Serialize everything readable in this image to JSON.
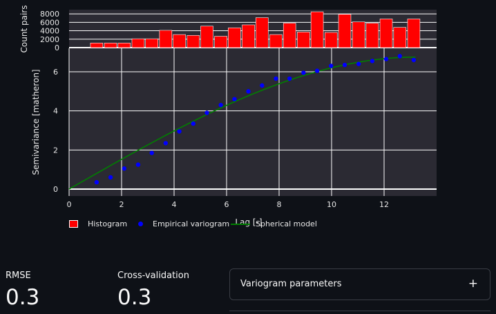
{
  "chart_data": {
    "type": "combined",
    "histogram": {
      "ylabel": "Count pairs",
      "yticks": [
        0,
        2000,
        4000,
        6000,
        8000
      ],
      "ylim": [
        0,
        9000
      ],
      "bin_centers": [
        1.05,
        1.58,
        2.1,
        2.63,
        3.15,
        3.68,
        4.2,
        4.73,
        5.25,
        5.78,
        6.3,
        6.83,
        7.35,
        7.88,
        8.4,
        8.93,
        9.45,
        9.98,
        10.5,
        11.03,
        11.55,
        12.08,
        12.6,
        13.13
      ],
      "counts": [
        1100,
        1100,
        1100,
        2100,
        2100,
        4100,
        3100,
        2900,
        5100,
        2700,
        4700,
        5400,
        7100,
        3100,
        5800,
        3700,
        8500,
        3600,
        7900,
        6100,
        5800,
        6800,
        4800,
        6800
      ]
    },
    "variogram": {
      "xlabel": "Lag [-]",
      "ylabel": "Semivariance [matheron]",
      "xlim": [
        0,
        14
      ],
      "ylim": [
        0,
        7.2
      ],
      "xticks": [
        0,
        2,
        4,
        6,
        8,
        10,
        12
      ],
      "yticks": [
        0,
        2,
        4,
        6
      ],
      "empirical": {
        "x": [
          1.05,
          1.58,
          2.1,
          2.63,
          3.15,
          3.68,
          4.2,
          4.73,
          5.25,
          5.78,
          6.3,
          6.83,
          7.35,
          7.88,
          8.4,
          8.93,
          9.45,
          9.98,
          10.5,
          11.03,
          11.55,
          12.08,
          12.6,
          13.13
        ],
        "y": [
          0.35,
          0.6,
          1.05,
          1.25,
          1.85,
          2.35,
          2.95,
          3.35,
          3.9,
          4.3,
          4.6,
          5.0,
          5.3,
          5.65,
          5.65,
          5.95,
          6.05,
          6.3,
          6.35,
          6.4,
          6.55,
          6.65,
          6.8,
          6.6
        ]
      },
      "model": {
        "range": 13.2,
        "sill": 6.75,
        "nugget": 0,
        "x_max": 13.2
      }
    },
    "legend": [
      "Histogram",
      "Empirical variogram",
      "Spherical model"
    ],
    "colors": {
      "histogram": "#ff0000",
      "empirical": "#0000ff",
      "model": "#008000"
    }
  },
  "metrics": [
    {
      "label": "RMSE",
      "value": "0.3"
    },
    {
      "label": "Cross-validation",
      "value": "0.3"
    }
  ],
  "expander": {
    "label": "Variogram parameters",
    "icon": "plus-icon"
  }
}
